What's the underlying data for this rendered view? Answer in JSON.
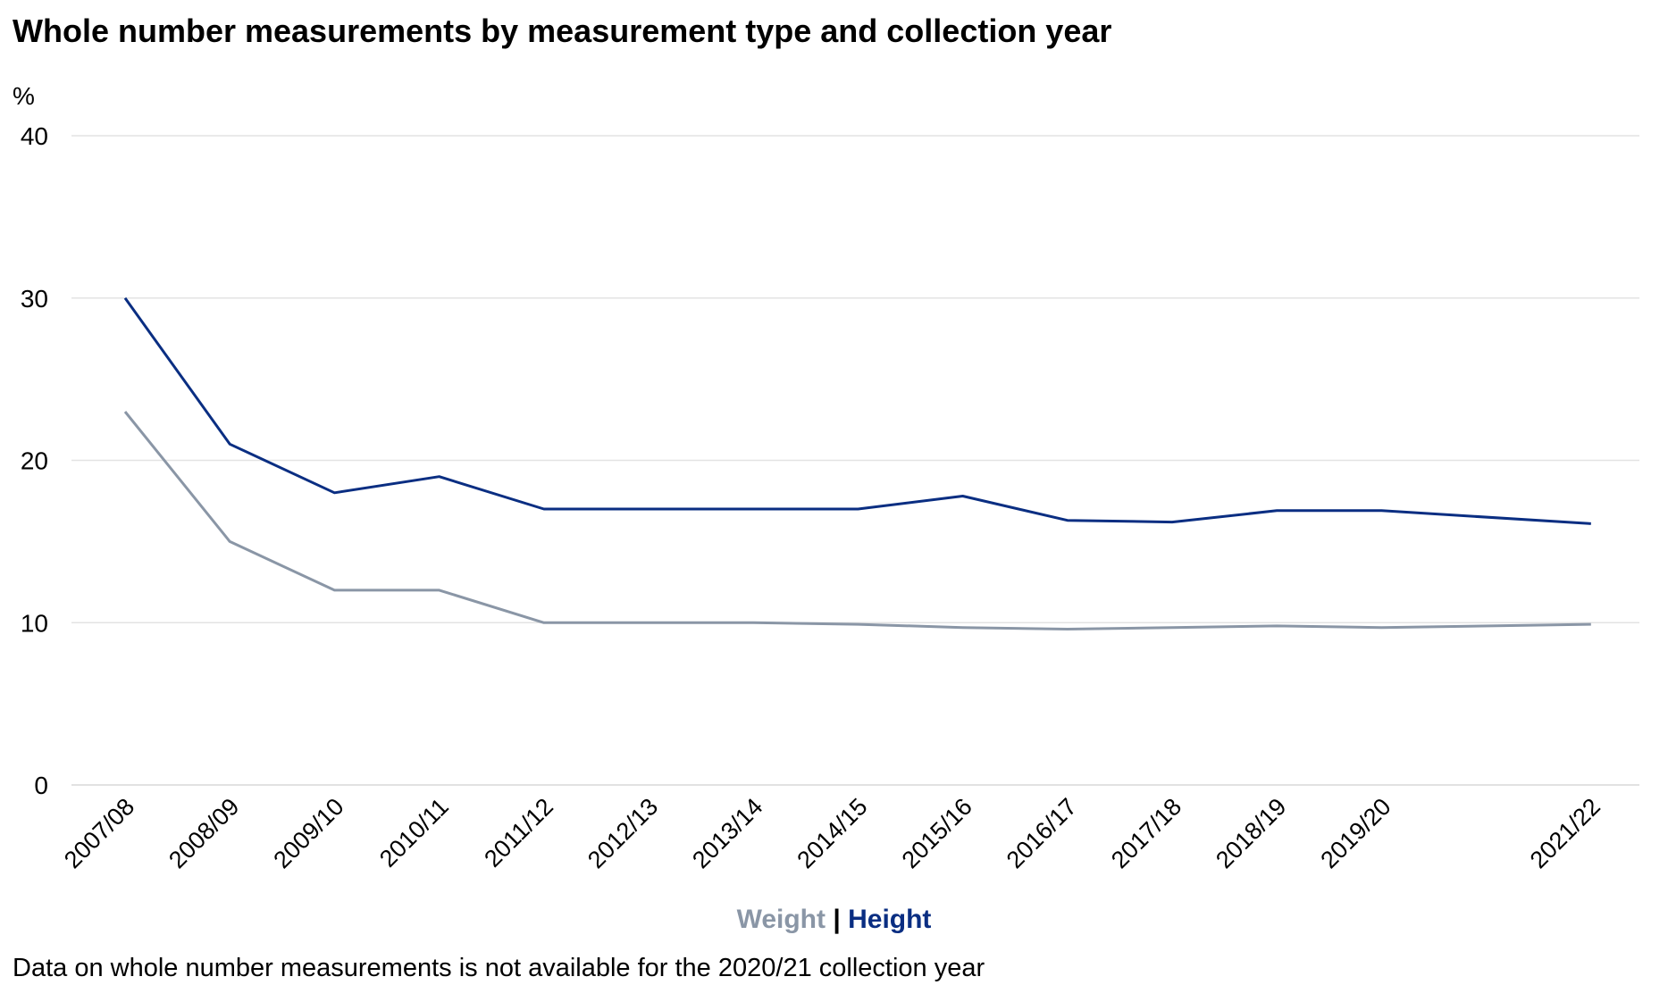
{
  "chart_data": {
    "type": "line",
    "title": "Whole number measurements by measurement type and collection year",
    "ylabel": "%",
    "xlabel": "",
    "ylim": [
      0,
      40
    ],
    "yticks": [
      0,
      10,
      20,
      30,
      40
    ],
    "grid": true,
    "categories": [
      "2007/08",
      "2008/09",
      "2009/10",
      "2010/11",
      "2011/12",
      "2012/13",
      "2013/14",
      "2014/15",
      "2015/16",
      "2016/17",
      "2017/18",
      "2018/19",
      "2019/20",
      "2021/22"
    ],
    "category_positions": [
      0,
      1,
      2,
      3,
      4,
      5,
      6,
      7,
      8,
      9,
      10,
      11,
      12,
      14
    ],
    "series": [
      {
        "name": "Weight",
        "color": "#8A96A6",
        "values": [
          23,
          15,
          12,
          12,
          10,
          10,
          10,
          9.9,
          9.7,
          9.6,
          9.7,
          9.8,
          9.7,
          9.9
        ]
      },
      {
        "name": "Height",
        "color": "#0A2E82",
        "values": [
          30,
          21,
          18,
          19,
          17,
          17,
          17,
          17,
          17.8,
          16.3,
          16.2,
          16.9,
          16.9,
          16.1
        ]
      }
    ],
    "legend": {
      "placement": "bottom-center",
      "separator": "|"
    },
    "note": "Data on whole number measurements is not available for the 2020/21 collection year"
  }
}
